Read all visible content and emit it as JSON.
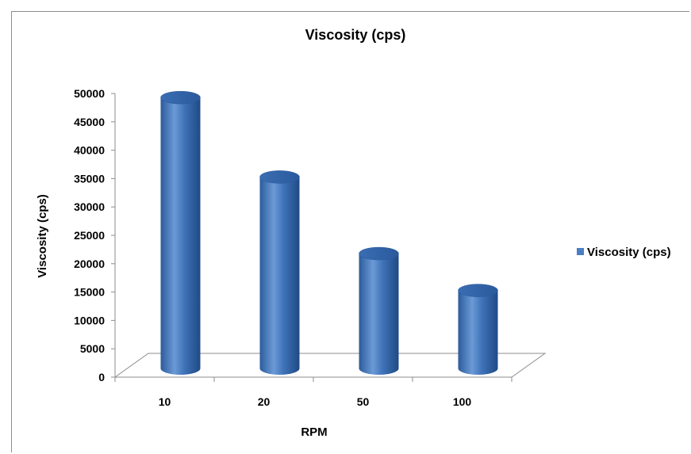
{
  "chart_data": {
    "type": "bar",
    "title": "Viscosity (cps)",
    "xlabel": "RPM",
    "ylabel": "Viscosity (cps)",
    "categories": [
      "10",
      "20",
      "50",
      "100"
    ],
    "series": [
      {
        "name": "Viscosity (cps)",
        "values": [
          49000,
          35000,
          21500,
          15000
        ]
      }
    ],
    "ylim": [
      0,
      50000
    ],
    "yticks": [
      "0",
      "5000",
      "10000",
      "15000",
      "20000",
      "25000",
      "30000",
      "35000",
      "40000",
      "45000",
      "50000"
    ],
    "legend_position": "right",
    "grid": false,
    "style": "3d-cylinder",
    "bar_color": "#4a7ec4"
  }
}
